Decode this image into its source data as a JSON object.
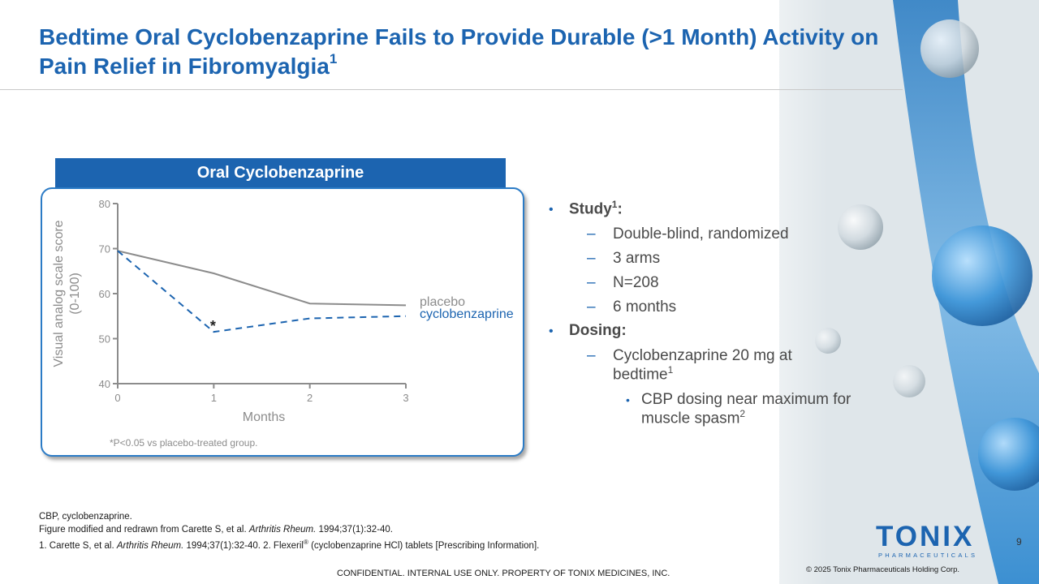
{
  "slide": {
    "title_main": "Bedtime Oral Cyclobenzaprine Fails to Provide Durable (>1 Month) Activity on Pain Relief in Fibromyalgia",
    "title_sup": "1",
    "chart_banner": "Oral Cyclobenzaprine",
    "footnote_sig": "*P<0.05 vs placebo-treated group.",
    "page_number": "9",
    "confidential": "CONFIDENTIAL. INTERNAL USE ONLY. PROPERTY OF TONIX MEDICINES, INC.",
    "copyright": "© 2025 Tonix Pharmaceuticals Holding Corp."
  },
  "bullets": {
    "study_label": "Study",
    "study_sup": "1",
    "study_colon": ":",
    "study_items": [
      "Double-blind, randomized",
      "3 arms",
      "N=208",
      "6 months"
    ],
    "dosing_label": "Dosing:",
    "dosing_item": "Cyclobenzaprine 20 mg at bedtime",
    "dosing_item_sup": "1",
    "dosing_sub": "CBP dosing near maximum for muscle spasm",
    "dosing_sub_sup": "2"
  },
  "footnotes": {
    "line1": "CBP, cyclobenzaprine.",
    "line2_pre": "Figure modified and redrawn from Carette S, et al. ",
    "line2_journal": "Arthritis Rheum.",
    "line2_post": " 1994;37(1):32-40.",
    "line3_pre": "1. Carette S, et al. ",
    "line3_journal": "Arthritis Rheum.",
    "line3_mid": " 1994;37(1):32-40. 2. Flexeril",
    "line3_reg": "®",
    "line3_post": " (cyclobenzaprine HCl) tablets [Prescribing Information]."
  },
  "logo": {
    "word": "TONIX",
    "sub": "PHARMACEUTICALS"
  },
  "chart_data": {
    "type": "line",
    "title": "Oral Cyclobenzaprine",
    "xlabel": "Months",
    "ylabel": "Visual analog scale score (0-100)",
    "x": [
      0,
      1,
      2,
      3
    ],
    "xlim": [
      0,
      3
    ],
    "ylim": [
      40,
      80
    ],
    "yticks": [
      40,
      50,
      60,
      70,
      80
    ],
    "series": [
      {
        "name": "placebo",
        "values": [
          69.5,
          64.5,
          57.8,
          57.4
        ],
        "color": "#8c8c8c",
        "style": "solid"
      },
      {
        "name": "cyclobenzaprine",
        "values": [
          69.5,
          51.5,
          54.5,
          55.0
        ],
        "color": "#1c64b0",
        "style": "dashed"
      }
    ],
    "significance_marker": {
      "label": "*",
      "series": "cyclobenzaprine",
      "x": 1
    }
  },
  "colors": {
    "brand_blue": "#1c64b0",
    "placebo_gray": "#8c8c8c",
    "text_gray": "#4a4a4a"
  }
}
